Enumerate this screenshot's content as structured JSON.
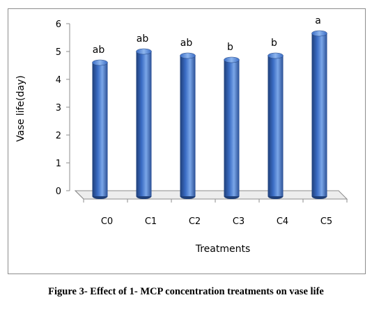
{
  "chart_data": {
    "type": "bar",
    "categories": [
      "C0",
      "C1",
      "C2",
      "C3",
      "C4",
      "C5"
    ],
    "values": [
      4.6,
      5.0,
      4.85,
      4.7,
      4.85,
      5.65
    ],
    "significance_letters": [
      "ab",
      "ab",
      "ab",
      "b",
      "b",
      "a"
    ],
    "title": "",
    "xlabel": "Treatments",
    "ylabel": "Vase life(day)",
    "ylim": [
      0,
      6
    ],
    "yticks": [
      "0",
      "1",
      "2",
      "3",
      "4",
      "5",
      "6"
    ],
    "grid": false,
    "legend": false,
    "style": "3d-cylinder",
    "colors": {
      "bar_dark": "#1f3f78",
      "bar_mid": "#3a6cc4",
      "bar_light": "#7aa6e8",
      "floor": "#ededed",
      "axis": "#8c8c8c"
    }
  },
  "caption": "Figure 3- Effect of 1- MCP concentration treatments on vase life"
}
